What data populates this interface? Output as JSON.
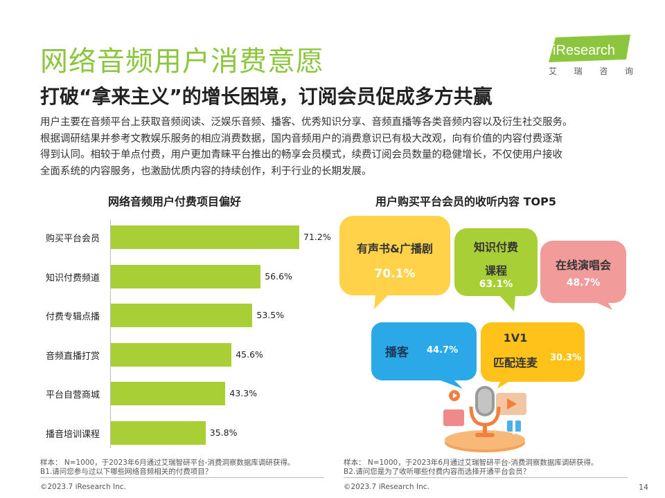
{
  "header": {
    "title": "网络音频用户消费意愿",
    "subtitle": "打破“拿来主义”的增长困境，订阅会员促成多方共赢",
    "logo_text": "iResearch",
    "logo_sub": [
      "艾",
      "瑞",
      "咨",
      "询"
    ]
  },
  "description": [
    "用户主要在音频平台上获取音频阅读、泛娱乐音频、播客、优秀知识分享、音频直播等各类音频内容以及衍生社交服务。",
    "根据调研结果并参考文教娱乐服务的相应消费数据，国内音频用户的消费意识已有极大改观，向有价值的内容付费逐渐",
    "得到认同。相较于单点付费，用户更加青睐平台推出的畅享会员模式，续费订阅会员数量的稳健增长，不仅使用户接收",
    "全面系统的内容服务，也激励优质内容的持续创作，利于行业的长期发展。"
  ],
  "chart_data": [
    {
      "type": "bar",
      "orientation": "horizontal",
      "title": "网络音频用户付费项目偏好",
      "categories": [
        "购买平台会员",
        "知识付费频道",
        "付费专辑点播",
        "音频直播打赏",
        "平台自营商城",
        "播音培训课程"
      ],
      "values": [
        71.2,
        56.6,
        53.5,
        45.6,
        43.3,
        35.8
      ],
      "value_labels": [
        "71.2%",
        "56.6%",
        "53.5%",
        "45.6%",
        "43.3%",
        "35.8%"
      ],
      "unit": "%",
      "color": "#a8cf36"
    },
    {
      "type": "bubble-list",
      "title": "用户购买平台会员的收听内容 TOP5",
      "items": [
        {
          "label": "有声书&广播剧",
          "value": 70.1,
          "value_label": "70.1%",
          "color": "#ffd24a"
        },
        {
          "label_lines": [
            "知识付费",
            "课程"
          ],
          "value": 63.1,
          "value_label": "63.1%",
          "color": "#a8cf36"
        },
        {
          "label": "在线演唱会",
          "value": 48.7,
          "value_label": "48.7%",
          "color": "#f29b9b"
        },
        {
          "label": "播客",
          "value": 44.7,
          "value_label": "44.7%",
          "color": "#2aa8e8"
        },
        {
          "label_lines": [
            "1V1",
            "匹配连麦"
          ],
          "value": 30.3,
          "value_label": "30.3%",
          "color": "#ffc21a"
        }
      ]
    }
  ],
  "footnotes": {
    "left": [
      "样本： N=1000，于2023年6月通过艾瑞智研平台-消费洞察数据库调研获得。",
      "B1.请问您参与过以下哪些网络音频相关的付费项目？"
    ],
    "right": [
      "样本： N=1000，于2023年6月通过艾瑞智研平台-消费洞察数据库调研获得。",
      "B2.请问您是为了收听哪些付费内容而选择开通平台会员？"
    ],
    "copyright_left": "©2023.7 iResearch Inc.",
    "copyright_right": "©2023.7 iResearch Inc.",
    "page": "14"
  },
  "colors": {
    "accent": "#8cc63f",
    "bar": "#a8cf36"
  }
}
